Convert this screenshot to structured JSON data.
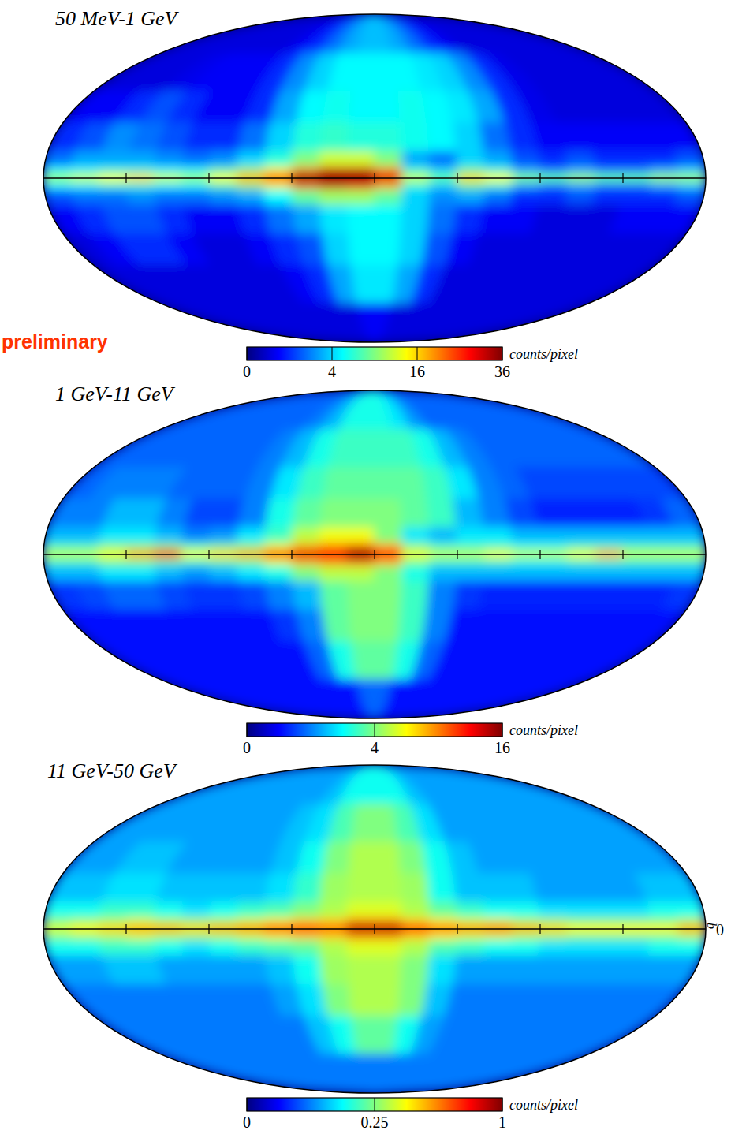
{
  "chart_data": [
    {
      "type": "heatmap",
      "title": "50 MeV-1 GeV",
      "annotation": "preliminary",
      "xlim": [
        180,
        -180
      ],
      "ylim": [
        -90,
        90
      ],
      "xticks": [
        135,
        90,
        45,
        0,
        -45,
        -90,
        -135
      ],
      "yticks": [
        0
      ],
      "tick_labels": false,
      "x_edges": [
        180,
        165,
        150,
        135,
        120,
        105,
        90,
        75,
        60,
        45,
        30,
        15,
        0,
        -15,
        -30,
        -45,
        -60,
        -75,
        -90,
        -105,
        -120,
        -135,
        -150,
        -165,
        -180
      ],
      "y_edges": [
        90,
        60,
        40,
        25,
        12,
        5,
        2,
        -2,
        -5,
        -12,
        -25,
        -40,
        -60,
        -90
      ],
      "cells": [
        [
          0.3,
          0.3,
          0.3,
          0.3,
          0.3,
          0.3,
          0.3,
          0.5,
          1,
          2,
          3,
          3.5,
          3.5,
          3,
          2,
          1,
          0.5,
          0.3,
          0.3,
          0.3,
          0.3,
          0.3,
          0.3,
          0.3
        ],
        [
          0.3,
          0.3,
          0.3,
          0.4,
          0.5,
          0.5,
          0.5,
          1,
          2.5,
          4,
          5,
          5,
          5,
          5,
          4.5,
          4,
          2.5,
          1,
          0.4,
          0.3,
          0.3,
          0.3,
          0.3,
          0.3
        ],
        [
          0.5,
          0.5,
          1,
          1.5,
          1,
          0.5,
          0.5,
          1,
          3,
          5,
          5.5,
          5,
          5,
          5.5,
          5,
          4.5,
          3,
          1,
          0.4,
          0.3,
          0.3,
          0.3,
          0.3,
          0.3
        ],
        [
          1,
          1.5,
          2.5,
          2,
          1.5,
          1,
          1,
          2,
          4,
          6,
          6.5,
          6,
          6,
          5.5,
          5,
          4,
          2,
          1,
          0.5,
          0.5,
          0.5,
          0.5,
          0.5,
          0.5
        ],
        [
          2,
          3,
          3,
          3,
          2.5,
          2,
          2.5,
          4,
          6,
          9,
          12,
          12,
          9,
          3,
          2,
          4,
          3,
          1.5,
          1,
          1.5,
          1,
          1,
          1,
          1.5
        ],
        [
          5,
          5,
          6,
          6,
          5,
          5,
          7,
          10,
          14,
          20,
          30,
          30,
          20,
          6,
          4,
          8,
          6,
          3,
          2,
          3,
          2,
          2,
          3,
          4
        ],
        [
          10,
          12,
          14,
          16,
          12,
          10,
          14,
          18,
          25,
          36,
          36,
          36,
          30,
          12,
          8,
          16,
          14,
          9,
          8,
          10,
          8,
          8,
          10,
          10
        ],
        [
          5,
          5,
          6,
          6,
          5,
          5,
          7,
          10,
          14,
          22,
          30,
          28,
          18,
          6,
          4,
          8,
          6,
          3,
          2,
          3,
          2,
          2,
          3,
          4
        ],
        [
          1.5,
          2,
          2,
          2.5,
          2,
          2,
          2.5,
          3,
          5,
          8,
          10,
          10,
          8,
          4,
          2.5,
          3,
          2,
          1,
          1,
          1.5,
          1,
          1,
          1,
          1.5
        ],
        [
          0.5,
          1,
          1.5,
          1.5,
          1,
          0.5,
          0.5,
          1,
          2,
          3,
          4.5,
          5,
          5,
          4,
          2,
          1,
          0.5,
          0.5,
          0.3,
          0.3,
          0.3,
          0.5,
          0.5,
          0.5
        ],
        [
          0.3,
          0.5,
          1,
          1,
          0.5,
          0.3,
          0.3,
          0.5,
          1,
          1.5,
          4,
          5,
          5,
          4,
          1.5,
          0.5,
          0.3,
          0.3,
          0.3,
          0.3,
          0.3,
          0.3,
          0.3,
          0.3
        ],
        [
          0.3,
          0.3,
          0.3,
          0.3,
          0.3,
          0.3,
          0.3,
          0.3,
          0.5,
          1,
          3,
          4.5,
          4.5,
          3,
          1,
          0.3,
          0.3,
          0.3,
          0.3,
          0.3,
          0.3,
          0.3,
          0.3,
          0.3
        ],
        [
          0.3,
          0.3,
          0.3,
          0.3,
          0.3,
          0.3,
          0.3,
          0.3,
          0.3,
          0.3,
          0.3,
          0.5,
          0.5,
          0.3,
          0.3,
          0.3,
          0.3,
          0.3,
          0.3,
          0.3,
          0.3,
          0.3,
          0.3,
          0.3
        ]
      ],
      "color_range": [
        0,
        36
      ],
      "color_ticks": [
        0,
        4,
        16,
        36
      ],
      "color_label": "counts/pixel"
    },
    {
      "type": "heatmap",
      "title": "1 GeV-11 GeV",
      "xlim": [
        180,
        -180
      ],
      "ylim": [
        -90,
        90
      ],
      "xticks": [
        135,
        90,
        45,
        0,
        -45,
        -90,
        -135
      ],
      "yticks": [
        0
      ],
      "tick_labels": false,
      "x_edges": [
        180,
        165,
        150,
        135,
        120,
        105,
        90,
        75,
        60,
        45,
        30,
        15,
        0,
        -15,
        -30,
        -45,
        -60,
        -75,
        -90,
        -105,
        -120,
        -135,
        -150,
        -165,
        -180
      ],
      "y_edges": [
        90,
        60,
        40,
        25,
        12,
        5,
        2,
        -2,
        -5,
        -12,
        -25,
        -40,
        -60,
        -90
      ],
      "cells": [
        [
          0.8,
          0.8,
          0.8,
          0.8,
          0.8,
          0.8,
          0.8,
          0.8,
          1,
          1.5,
          2.5,
          2.5,
          2.5,
          2,
          1.2,
          0.8,
          0.8,
          0.8,
          0.8,
          0.8,
          0.8,
          0.8,
          0.8,
          0.8
        ],
        [
          0.8,
          0.8,
          0.8,
          0.8,
          0.8,
          0.8,
          0.8,
          1,
          1.5,
          2.5,
          3,
          3,
          3,
          3,
          2.5,
          1.5,
          1,
          0.8,
          0.8,
          0.8,
          0.8,
          0.8,
          0.8,
          0.8
        ],
        [
          0.8,
          1,
          1,
          1,
          0.8,
          0.8,
          0.8,
          1,
          2,
          3,
          3.5,
          3.5,
          3.5,
          3.5,
          3,
          2,
          1,
          0.8,
          0.6,
          0.6,
          0.6,
          0.6,
          0.6,
          0.6
        ],
        [
          1,
          1,
          1.5,
          1.5,
          1,
          0.6,
          0.6,
          1,
          2.5,
          3.5,
          4,
          4,
          4,
          3.5,
          3,
          1.5,
          1,
          0.6,
          0.4,
          0.4,
          0.4,
          0.4,
          0.5,
          0.8
        ],
        [
          1.5,
          1.5,
          2,
          2,
          1.5,
          1,
          1.2,
          2,
          3,
          5,
          6,
          6,
          4,
          2,
          1.5,
          2,
          2,
          1.5,
          1.5,
          1.5,
          1.5,
          1.5,
          1.5,
          1.5
        ],
        [
          3,
          3,
          4,
          4,
          4,
          3,
          3.5,
          4,
          6,
          8,
          9,
          10,
          8,
          4,
          3,
          3,
          3,
          2.5,
          2.5,
          3,
          3,
          3,
          3,
          3
        ],
        [
          5,
          5,
          6,
          8,
          12,
          6,
          7,
          8,
          11,
          13,
          12,
          16,
          12,
          6,
          5,
          5,
          6,
          5,
          5,
          6,
          8,
          5,
          5,
          5
        ],
        [
          3,
          3,
          4,
          4,
          3.5,
          3,
          3.5,
          4,
          6,
          8,
          9,
          10,
          8,
          4,
          3,
          3,
          3,
          2.5,
          2.5,
          3,
          3,
          3,
          3,
          3
        ],
        [
          1.5,
          1.5,
          2,
          2,
          1.5,
          1.2,
          1.5,
          2,
          2.5,
          4,
          5,
          5,
          4,
          2.5,
          1.5,
          1.5,
          1.5,
          1.5,
          1.5,
          1.5,
          1.5,
          1.5,
          1.5,
          1.5
        ],
        [
          0.5,
          0.6,
          0.8,
          0.8,
          0.6,
          0.5,
          0.5,
          0.6,
          1,
          1.5,
          3.5,
          4,
          4,
          3,
          1,
          0.5,
          0.4,
          0.4,
          0.4,
          0.4,
          0.4,
          0.4,
          0.4,
          0.5
        ],
        [
          0.3,
          0.3,
          0.3,
          0.3,
          0.3,
          0.3,
          0.3,
          0.3,
          0.5,
          1,
          3.5,
          4,
          4,
          3,
          1,
          0.3,
          0.3,
          0.3,
          0.3,
          0.3,
          0.3,
          0.3,
          0.3,
          0.3
        ],
        [
          0.3,
          0.3,
          0.3,
          0.3,
          0.3,
          0.3,
          0.3,
          0.3,
          0.3,
          0.8,
          2.5,
          3.5,
          3.5,
          2.5,
          0.8,
          0.3,
          0.3,
          0.3,
          0.3,
          0.3,
          0.3,
          0.3,
          0.3,
          0.3
        ],
        [
          0.3,
          0.3,
          0.3,
          0.3,
          0.3,
          0.3,
          0.3,
          0.3,
          0.3,
          0.3,
          0.3,
          0.8,
          0.8,
          0.3,
          0.3,
          0.3,
          0.3,
          0.3,
          0.3,
          0.3,
          0.3,
          0.3,
          0.3,
          0.3
        ]
      ],
      "color_range": [
        0,
        16
      ],
      "color_ticks": [
        0,
        4,
        16
      ],
      "color_label": "counts/pixel"
    },
    {
      "type": "heatmap",
      "title": "11 GeV-50 GeV",
      "xlim": [
        180,
        -180
      ],
      "ylim": [
        -90,
        90
      ],
      "xticks": [
        135,
        90,
        45,
        0,
        -45,
        -90,
        -135
      ],
      "yticks": [
        0
      ],
      "ylabel": "b",
      "tick_labels": "y",
      "x_edges": [
        180,
        165,
        150,
        135,
        120,
        105,
        90,
        75,
        60,
        45,
        30,
        15,
        0,
        -15,
        -30,
        -45,
        -60,
        -75,
        -90,
        -105,
        -120,
        -135,
        -150,
        -165,
        -180
      ],
      "y_edges": [
        90,
        60,
        40,
        25,
        12,
        5,
        2,
        -2,
        -5,
        -12,
        -25,
        -40,
        -60,
        -90
      ],
      "cells": [
        [
          0.08,
          0.08,
          0.08,
          0.08,
          0.08,
          0.08,
          0.08,
          0.08,
          0.08,
          0.1,
          0.15,
          0.15,
          0.15,
          0.15,
          0.1,
          0.08,
          0.08,
          0.08,
          0.08,
          0.08,
          0.08,
          0.08,
          0.08,
          0.08
        ],
        [
          0.08,
          0.08,
          0.08,
          0.08,
          0.08,
          0.08,
          0.08,
          0.08,
          0.1,
          0.12,
          0.2,
          0.25,
          0.25,
          0.2,
          0.12,
          0.08,
          0.08,
          0.08,
          0.08,
          0.08,
          0.08,
          0.08,
          0.08,
          0.08
        ],
        [
          0.08,
          0.08,
          0.1,
          0.1,
          0.08,
          0.08,
          0.08,
          0.08,
          0.1,
          0.15,
          0.25,
          0.3,
          0.3,
          0.25,
          0.15,
          0.1,
          0.08,
          0.08,
          0.08,
          0.08,
          0.08,
          0.08,
          0.08,
          0.08
        ],
        [
          0.1,
          0.1,
          0.12,
          0.12,
          0.1,
          0.1,
          0.1,
          0.1,
          0.12,
          0.18,
          0.28,
          0.3,
          0.3,
          0.28,
          0.15,
          0.1,
          0.1,
          0.1,
          0.08,
          0.08,
          0.08,
          0.08,
          0.1,
          0.1
        ],
        [
          0.15,
          0.15,
          0.18,
          0.18,
          0.15,
          0.12,
          0.15,
          0.18,
          0.2,
          0.25,
          0.3,
          0.35,
          0.35,
          0.3,
          0.22,
          0.18,
          0.15,
          0.15,
          0.12,
          0.12,
          0.12,
          0.12,
          0.15,
          0.15
        ],
        [
          0.25,
          0.28,
          0.3,
          0.35,
          0.3,
          0.28,
          0.3,
          0.35,
          0.4,
          0.45,
          0.45,
          0.55,
          0.55,
          0.45,
          0.4,
          0.35,
          0.35,
          0.3,
          0.28,
          0.25,
          0.25,
          0.25,
          0.25,
          0.3
        ],
        [
          0.35,
          0.4,
          0.45,
          0.5,
          0.5,
          0.45,
          0.5,
          0.55,
          0.7,
          0.7,
          0.6,
          0.9,
          0.9,
          0.7,
          0.6,
          0.55,
          0.6,
          0.5,
          0.45,
          0.4,
          0.4,
          0.4,
          0.4,
          0.5
        ],
        [
          0.25,
          0.28,
          0.3,
          0.35,
          0.3,
          0.28,
          0.3,
          0.35,
          0.4,
          0.45,
          0.45,
          0.55,
          0.55,
          0.45,
          0.4,
          0.35,
          0.35,
          0.3,
          0.28,
          0.25,
          0.25,
          0.25,
          0.25,
          0.3
        ],
        [
          0.15,
          0.15,
          0.18,
          0.18,
          0.15,
          0.12,
          0.15,
          0.18,
          0.2,
          0.22,
          0.3,
          0.35,
          0.35,
          0.3,
          0.2,
          0.18,
          0.15,
          0.15,
          0.12,
          0.12,
          0.12,
          0.12,
          0.15,
          0.15
        ],
        [
          0.08,
          0.08,
          0.1,
          0.1,
          0.08,
          0.08,
          0.08,
          0.08,
          0.1,
          0.15,
          0.28,
          0.3,
          0.3,
          0.25,
          0.12,
          0.08,
          0.08,
          0.08,
          0.08,
          0.08,
          0.08,
          0.08,
          0.08,
          0.08
        ],
        [
          0.06,
          0.06,
          0.06,
          0.06,
          0.06,
          0.06,
          0.06,
          0.06,
          0.08,
          0.12,
          0.25,
          0.3,
          0.3,
          0.25,
          0.1,
          0.06,
          0.06,
          0.06,
          0.06,
          0.06,
          0.06,
          0.06,
          0.06,
          0.06
        ],
        [
          0.06,
          0.06,
          0.06,
          0.06,
          0.06,
          0.06,
          0.06,
          0.06,
          0.06,
          0.1,
          0.15,
          0.22,
          0.22,
          0.15,
          0.08,
          0.06,
          0.06,
          0.06,
          0.06,
          0.06,
          0.06,
          0.06,
          0.06,
          0.06
        ],
        [
          0.06,
          0.06,
          0.06,
          0.06,
          0.06,
          0.06,
          0.06,
          0.06,
          0.06,
          0.06,
          0.06,
          0.06,
          0.06,
          0.06,
          0.06,
          0.06,
          0.06,
          0.06,
          0.06,
          0.06,
          0.06,
          0.06,
          0.06,
          0.06
        ]
      ],
      "color_range": [
        0,
        1
      ],
      "color_ticks": [
        0,
        0.25,
        1
      ],
      "color_label": "counts/pixel"
    }
  ]
}
